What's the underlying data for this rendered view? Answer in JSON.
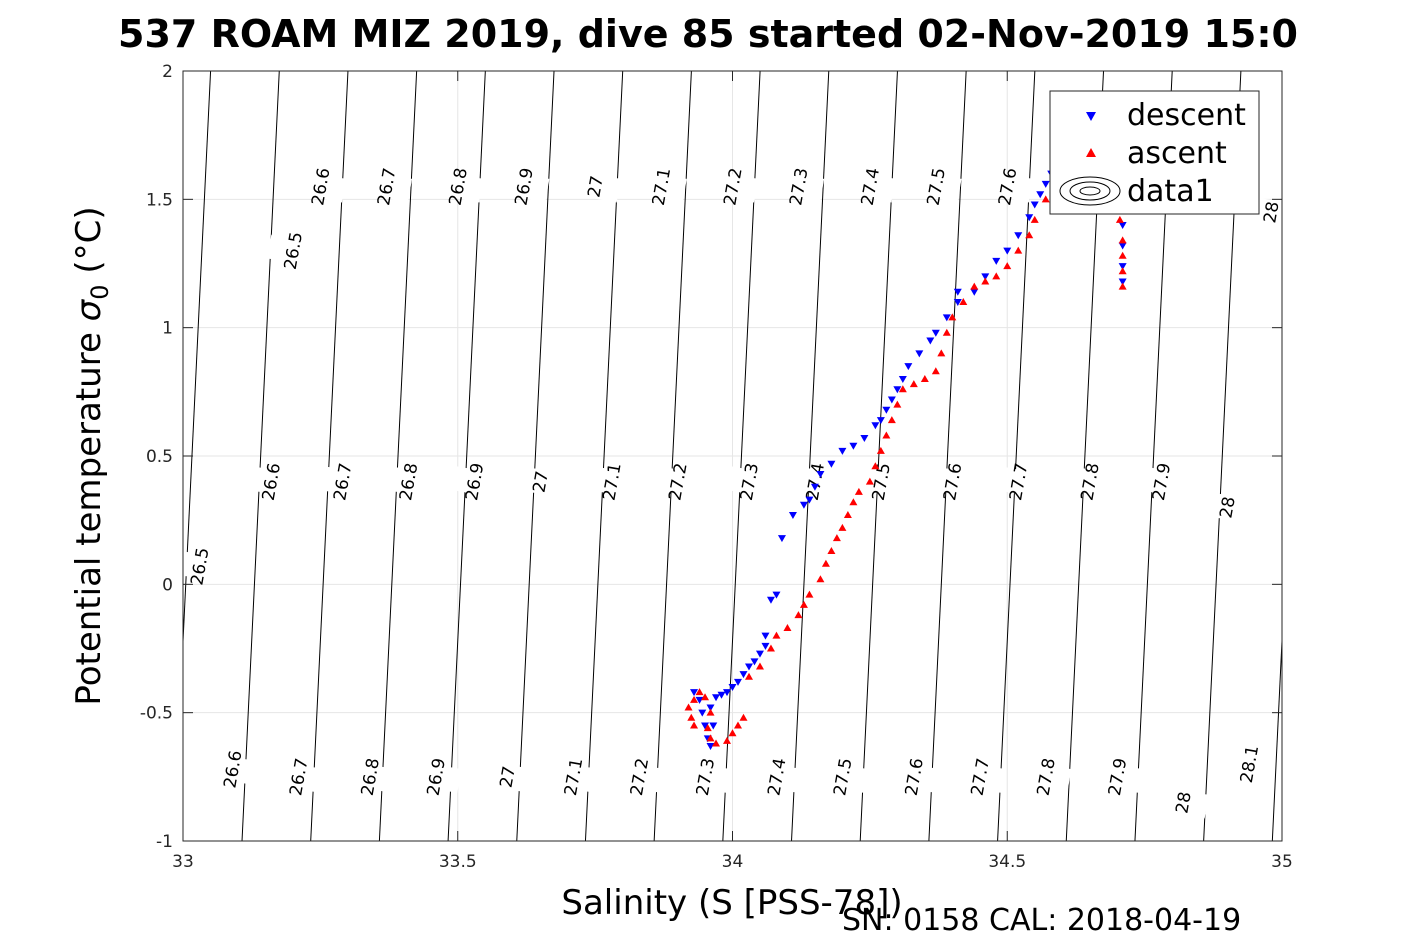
{
  "title": "537 ROAM MIZ 2019, dive 85 started 02-Nov-2019 15:0",
  "footer": "SN: 0158  CAL: 2018-04-19",
  "chart_data": {
    "type": "scatter",
    "xlabel": "Salinity (S [PSS-78])",
    "ylabel_main": "Potential temperature ",
    "ylabel_symbol": "σ",
    "ylabel_sub": "0",
    "ylabel_unit": " (°C)",
    "xlim": [
      33,
      35
    ],
    "ylim": [
      -1,
      2
    ],
    "xticks": [
      33,
      33.5,
      34,
      34.5,
      35
    ],
    "xtick_labels": [
      "33",
      "33.5",
      "34",
      "34.5",
      "35"
    ],
    "yticks": [
      -1,
      -0.5,
      0,
      0.5,
      1,
      1.5,
      2
    ],
    "ytick_labels": [
      "-1",
      "-0.5",
      "0",
      "0.5",
      "1",
      "1.5",
      "2"
    ],
    "grid": true,
    "legend_position": "top-right",
    "legend": [
      "descent",
      "ascent",
      "data1"
    ],
    "colors": {
      "descent": "#0000ff",
      "ascent": "#ff0000",
      "contour": "#000000",
      "grid": "#e6e6e6"
    },
    "density_contours": [
      {
        "label": "26.5",
        "s_at_t0": 33.005,
        "label_positions": [
          [
            33.03,
            0.07
          ],
          [
            33.2,
            1.3
          ]
        ]
      },
      {
        "label": "26.6",
        "s_at_t0": 33.13,
        "label_positions": [
          [
            33.09,
            -0.72
          ],
          [
            33.16,
            0.4
          ],
          [
            33.25,
            1.55
          ]
        ]
      },
      {
        "label": "26.7",
        "s_at_t0": 33.255,
        "label_positions": [
          [
            33.21,
            -0.75
          ],
          [
            33.29,
            0.4
          ],
          [
            33.37,
            1.55
          ]
        ]
      },
      {
        "label": "26.8",
        "s_at_t0": 33.38,
        "label_positions": [
          [
            33.34,
            -0.75
          ],
          [
            33.41,
            0.4
          ],
          [
            33.5,
            1.55
          ]
        ]
      },
      {
        "label": "26.9",
        "s_at_t0": 33.505,
        "label_positions": [
          [
            33.46,
            -0.75
          ],
          [
            33.53,
            0.4
          ],
          [
            33.62,
            1.55
          ]
        ]
      },
      {
        "label": "27",
        "s_at_t0": 33.63,
        "label_positions": [
          [
            33.59,
            -0.75
          ],
          [
            33.65,
            0.4
          ],
          [
            33.75,
            1.55
          ]
        ]
      },
      {
        "label": "27.1",
        "s_at_t0": 33.755,
        "label_positions": [
          [
            33.71,
            -0.75
          ],
          [
            33.78,
            0.4
          ],
          [
            33.87,
            1.55
          ]
        ]
      },
      {
        "label": "27.2",
        "s_at_t0": 33.88,
        "label_positions": [
          [
            33.83,
            -0.75
          ],
          [
            33.9,
            0.4
          ],
          [
            34.0,
            1.55
          ]
        ]
      },
      {
        "label": "27.3",
        "s_at_t0": 34.005,
        "label_positions": [
          [
            33.95,
            -0.75
          ],
          [
            34.03,
            0.4
          ],
          [
            34.12,
            1.55
          ]
        ]
      },
      {
        "label": "27.4",
        "s_at_t0": 34.13,
        "label_positions": [
          [
            34.08,
            -0.75
          ],
          [
            34.15,
            0.4
          ],
          [
            34.25,
            1.55
          ]
        ]
      },
      {
        "label": "27.5",
        "s_at_t0": 34.255,
        "label_positions": [
          [
            34.2,
            -0.75
          ],
          [
            34.27,
            0.4
          ],
          [
            34.37,
            1.55
          ]
        ]
      },
      {
        "label": "27.6",
        "s_at_t0": 34.38,
        "label_positions": [
          [
            34.33,
            -0.75
          ],
          [
            34.4,
            0.4
          ],
          [
            34.5,
            1.55
          ]
        ]
      },
      {
        "label": "27.7",
        "s_at_t0": 34.505,
        "label_positions": [
          [
            34.45,
            -0.75
          ],
          [
            34.52,
            0.4
          ]
        ]
      },
      {
        "label": "27.8",
        "s_at_t0": 34.63,
        "label_positions": [
          [
            34.57,
            -0.75
          ],
          [
            34.65,
            0.4
          ]
        ]
      },
      {
        "label": "27.9",
        "s_at_t0": 34.755,
        "label_positions": [
          [
            34.7,
            -0.75
          ],
          [
            34.78,
            0.4
          ]
        ]
      },
      {
        "label": "28",
        "s_at_t0": 34.88,
        "label_positions": [
          [
            34.82,
            -0.85
          ],
          [
            34.9,
            0.3
          ],
          [
            34.98,
            1.45
          ]
        ]
      },
      {
        "label": "28.1",
        "s_at_t0": 35.005,
        "label_positions": [
          [
            34.94,
            -0.7
          ]
        ]
      }
    ],
    "series": [
      {
        "name": "descent",
        "marker": "triangle-down",
        "points": [
          [
            33.93,
            -0.42
          ],
          [
            33.94,
            -0.45
          ],
          [
            33.945,
            -0.5
          ],
          [
            33.95,
            -0.55
          ],
          [
            33.955,
            -0.6
          ],
          [
            33.96,
            -0.63
          ],
          [
            33.965,
            -0.55
          ],
          [
            33.96,
            -0.48
          ],
          [
            33.97,
            -0.44
          ],
          [
            33.98,
            -0.43
          ],
          [
            33.99,
            -0.42
          ],
          [
            34.0,
            -0.4
          ],
          [
            34.01,
            -0.38
          ],
          [
            34.02,
            -0.35
          ],
          [
            34.03,
            -0.32
          ],
          [
            34.04,
            -0.3
          ],
          [
            34.05,
            -0.27
          ],
          [
            34.06,
            -0.24
          ],
          [
            34.06,
            -0.2
          ],
          [
            34.07,
            -0.06
          ],
          [
            34.08,
            -0.04
          ],
          [
            34.09,
            0.18
          ],
          [
            34.11,
            0.27
          ],
          [
            34.13,
            0.31
          ],
          [
            34.14,
            0.33
          ],
          [
            34.15,
            0.38
          ],
          [
            34.16,
            0.43
          ],
          [
            34.18,
            0.47
          ],
          [
            34.2,
            0.52
          ],
          [
            34.22,
            0.54
          ],
          [
            34.24,
            0.57
          ],
          [
            34.26,
            0.62
          ],
          [
            34.27,
            0.64
          ],
          [
            34.28,
            0.68
          ],
          [
            34.29,
            0.72
          ],
          [
            34.3,
            0.76
          ],
          [
            34.31,
            0.8
          ],
          [
            34.32,
            0.85
          ],
          [
            34.34,
            0.9
          ],
          [
            34.36,
            0.95
          ],
          [
            34.37,
            0.98
          ],
          [
            34.39,
            1.04
          ],
          [
            34.41,
            1.1
          ],
          [
            34.41,
            1.14
          ],
          [
            34.44,
            1.14
          ],
          [
            34.46,
            1.2
          ],
          [
            34.48,
            1.26
          ],
          [
            34.5,
            1.3
          ],
          [
            34.52,
            1.36
          ],
          [
            34.54,
            1.43
          ],
          [
            34.55,
            1.48
          ],
          [
            34.56,
            1.52
          ],
          [
            34.57,
            1.56
          ],
          [
            34.58,
            1.6
          ],
          [
            34.6,
            1.63
          ],
          [
            34.62,
            1.64
          ],
          [
            34.64,
            1.62
          ],
          [
            34.66,
            1.58
          ],
          [
            34.7,
            1.52
          ],
          [
            34.71,
            1.46
          ],
          [
            34.71,
            1.4
          ],
          [
            34.71,
            1.32
          ],
          [
            34.71,
            1.24
          ],
          [
            34.71,
            1.18
          ]
        ]
      },
      {
        "name": "ascent",
        "marker": "triangle-up",
        "points": [
          [
            33.92,
            -0.48
          ],
          [
            33.925,
            -0.52
          ],
          [
            33.93,
            -0.55
          ],
          [
            33.93,
            -0.45
          ],
          [
            33.94,
            -0.42
          ],
          [
            33.95,
            -0.44
          ],
          [
            33.96,
            -0.5
          ],
          [
            33.955,
            -0.56
          ],
          [
            33.96,
            -0.6
          ],
          [
            33.97,
            -0.62
          ],
          [
            33.99,
            -0.61
          ],
          [
            34.0,
            -0.58
          ],
          [
            34.01,
            -0.55
          ],
          [
            34.02,
            -0.52
          ],
          [
            34.03,
            -0.36
          ],
          [
            34.05,
            -0.32
          ],
          [
            34.07,
            -0.25
          ],
          [
            34.08,
            -0.2
          ],
          [
            34.1,
            -0.17
          ],
          [
            34.12,
            -0.12
          ],
          [
            34.13,
            -0.08
          ],
          [
            34.14,
            -0.04
          ],
          [
            34.16,
            0.02
          ],
          [
            34.17,
            0.08
          ],
          [
            34.18,
            0.13
          ],
          [
            34.19,
            0.18
          ],
          [
            34.2,
            0.22
          ],
          [
            34.21,
            0.27
          ],
          [
            34.22,
            0.32
          ],
          [
            34.23,
            0.36
          ],
          [
            34.25,
            0.4
          ],
          [
            34.26,
            0.46
          ],
          [
            34.27,
            0.52
          ],
          [
            34.28,
            0.58
          ],
          [
            34.29,
            0.64
          ],
          [
            34.3,
            0.7
          ],
          [
            34.31,
            0.76
          ],
          [
            34.33,
            0.78
          ],
          [
            34.35,
            0.8
          ],
          [
            34.37,
            0.83
          ],
          [
            34.38,
            0.9
          ],
          [
            34.39,
            0.98
          ],
          [
            34.4,
            1.04
          ],
          [
            34.42,
            1.1
          ],
          [
            34.44,
            1.16
          ],
          [
            34.46,
            1.18
          ],
          [
            34.48,
            1.2
          ],
          [
            34.5,
            1.24
          ],
          [
            34.52,
            1.3
          ],
          [
            34.54,
            1.36
          ],
          [
            34.55,
            1.42
          ],
          [
            34.57,
            1.5
          ],
          [
            34.59,
            1.56
          ],
          [
            34.61,
            1.58
          ],
          [
            34.63,
            1.6
          ],
          [
            34.66,
            1.62
          ],
          [
            34.7,
            1.5
          ],
          [
            34.705,
            1.42
          ],
          [
            34.71,
            1.34
          ],
          [
            34.71,
            1.28
          ],
          [
            34.71,
            1.22
          ],
          [
            34.71,
            1.16
          ]
        ]
      }
    ]
  }
}
